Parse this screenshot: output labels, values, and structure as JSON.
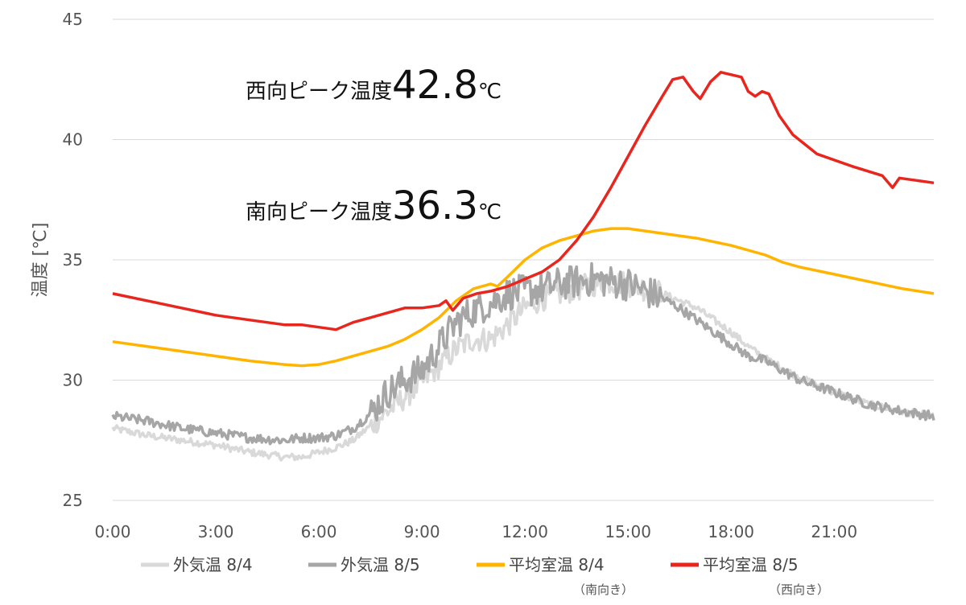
{
  "chart_data": {
    "type": "line",
    "ylabel": "温度 [℃]",
    "xlabel": "",
    "ylim": [
      25,
      45
    ],
    "yticks": [
      "25",
      "30",
      "35",
      "40",
      "45"
    ],
    "xlim": [
      0,
      23.9
    ],
    "xticks": [
      "0:00",
      "3:00",
      "6:00",
      "9:00",
      "12:00",
      "15:00",
      "18:00",
      "21:00"
    ],
    "grid": "horizontal",
    "legend_position": "bottom",
    "annotations": [
      {
        "label": "西向ピーク温度",
        "value": "42.8",
        "unit": "℃"
      },
      {
        "label": "南向ピーク温度",
        "value": "36.3",
        "unit": "℃"
      }
    ],
    "series": [
      {
        "name": "外気温 8/4",
        "color": "#d9d9d9",
        "noise": 0.15,
        "points": [
          [
            0,
            28.0
          ],
          [
            1,
            27.7
          ],
          [
            2,
            27.5
          ],
          [
            3,
            27.3
          ],
          [
            4,
            27.0
          ],
          [
            5,
            26.8
          ],
          [
            5.5,
            26.8
          ],
          [
            6,
            27.0
          ],
          [
            6.5,
            27.2
          ],
          [
            7,
            27.5
          ],
          [
            7.5,
            28.1
          ],
          [
            8,
            28.7
          ],
          [
            8.5,
            29.3
          ],
          [
            9,
            29.9
          ],
          [
            9.5,
            30.6
          ],
          [
            10,
            31.3
          ],
          [
            10.5,
            31.7
          ],
          [
            11,
            31.7
          ],
          [
            11.5,
            32.3
          ],
          [
            12,
            33.0
          ],
          [
            12.5,
            33.4
          ],
          [
            13,
            33.6
          ],
          [
            13.5,
            33.8
          ],
          [
            14,
            34.0
          ],
          [
            14.5,
            34.1
          ],
          [
            15,
            34.0
          ],
          [
            15.5,
            33.8
          ],
          [
            16,
            33.6
          ],
          [
            16.5,
            33.3
          ],
          [
            17,
            33.0
          ],
          [
            17.5,
            32.5
          ],
          [
            18,
            32.0
          ],
          [
            18.5,
            31.4
          ],
          [
            19,
            30.9
          ],
          [
            19.5,
            30.5
          ],
          [
            20,
            30.1
          ],
          [
            21,
            29.5
          ],
          [
            22,
            29.0
          ],
          [
            23,
            28.7
          ],
          [
            23.9,
            28.5
          ]
        ]
      },
      {
        "name": "外気温 8/5",
        "color": "#a6a6a6",
        "noise": 0.2,
        "points": [
          [
            0,
            28.5
          ],
          [
            1,
            28.3
          ],
          [
            2,
            28.0
          ],
          [
            3,
            27.8
          ],
          [
            4,
            27.6
          ],
          [
            5,
            27.5
          ],
          [
            5.5,
            27.6
          ],
          [
            6,
            27.6
          ],
          [
            6.5,
            27.7
          ],
          [
            7,
            28.0
          ],
          [
            7.5,
            28.6
          ],
          [
            8,
            29.5
          ],
          [
            8.5,
            30.0
          ],
          [
            9,
            30.4
          ],
          [
            9.5,
            31.4
          ],
          [
            10,
            32.4
          ],
          [
            10.5,
            32.9
          ],
          [
            11,
            33.2
          ],
          [
            11.5,
            33.6
          ],
          [
            12,
            33.7
          ],
          [
            12.5,
            33.8
          ],
          [
            13,
            34.0
          ],
          [
            13.5,
            34.1
          ],
          [
            14,
            34.2
          ],
          [
            14.5,
            34.1
          ],
          [
            15,
            34.0
          ],
          [
            15.5,
            33.7
          ],
          [
            16,
            33.4
          ],
          [
            16.5,
            33.0
          ],
          [
            17,
            32.5
          ],
          [
            17.5,
            32.0
          ],
          [
            18,
            31.5
          ],
          [
            18.5,
            31.0
          ],
          [
            19,
            30.8
          ],
          [
            19.5,
            30.4
          ],
          [
            20,
            30.0
          ],
          [
            21,
            29.5
          ],
          [
            22,
            29.0
          ],
          [
            23,
            28.7
          ],
          [
            23.9,
            28.5
          ]
        ]
      },
      {
        "name": "平均室温 8/4",
        "subname": "（南向き）",
        "color": "#ffb400",
        "noise": 0,
        "points": [
          [
            0,
            31.6
          ],
          [
            1,
            31.4
          ],
          [
            2,
            31.2
          ],
          [
            3,
            31.0
          ],
          [
            4,
            30.8
          ],
          [
            5,
            30.65
          ],
          [
            5.5,
            30.6
          ],
          [
            6,
            30.65
          ],
          [
            6.5,
            30.8
          ],
          [
            7,
            31.0
          ],
          [
            7.5,
            31.2
          ],
          [
            8,
            31.4
          ],
          [
            8.5,
            31.7
          ],
          [
            9,
            32.1
          ],
          [
            9.5,
            32.6
          ],
          [
            10,
            33.3
          ],
          [
            10.5,
            33.8
          ],
          [
            11,
            34.0
          ],
          [
            11.2,
            33.9
          ],
          [
            11.5,
            34.3
          ],
          [
            12,
            35.0
          ],
          [
            12.5,
            35.5
          ],
          [
            13,
            35.8
          ],
          [
            13.5,
            36.0
          ],
          [
            14,
            36.2
          ],
          [
            14.5,
            36.3
          ],
          [
            15,
            36.3
          ],
          [
            15.5,
            36.2
          ],
          [
            16,
            36.1
          ],
          [
            17,
            35.9
          ],
          [
            18,
            35.6
          ],
          [
            19,
            35.2
          ],
          [
            19.5,
            34.9
          ],
          [
            20,
            34.7
          ],
          [
            21,
            34.4
          ],
          [
            22,
            34.1
          ],
          [
            23,
            33.8
          ],
          [
            23.9,
            33.6
          ]
        ]
      },
      {
        "name": "平均室温 8/5",
        "subname": "（西向き）",
        "color": "#e8261e",
        "noise": 0,
        "points": [
          [
            0,
            33.6
          ],
          [
            1,
            33.3
          ],
          [
            2,
            33.0
          ],
          [
            3,
            32.7
          ],
          [
            4,
            32.5
          ],
          [
            5,
            32.3
          ],
          [
            5.5,
            32.3
          ],
          [
            6,
            32.2
          ],
          [
            6.5,
            32.1
          ],
          [
            7,
            32.4
          ],
          [
            7.5,
            32.6
          ],
          [
            8,
            32.8
          ],
          [
            8.5,
            33.0
          ],
          [
            9,
            33.0
          ],
          [
            9.5,
            33.1
          ],
          [
            9.7,
            33.3
          ],
          [
            9.9,
            32.9
          ],
          [
            10.2,
            33.4
          ],
          [
            10.6,
            33.6
          ],
          [
            11,
            33.7
          ],
          [
            11.5,
            33.9
          ],
          [
            12,
            34.2
          ],
          [
            12.5,
            34.5
          ],
          [
            13,
            35.0
          ],
          [
            13.5,
            35.8
          ],
          [
            14,
            36.8
          ],
          [
            14.5,
            38.0
          ],
          [
            15,
            39.3
          ],
          [
            15.5,
            40.6
          ],
          [
            16,
            41.8
          ],
          [
            16.3,
            42.5
          ],
          [
            16.6,
            42.6
          ],
          [
            16.9,
            42.0
          ],
          [
            17.1,
            41.7
          ],
          [
            17.4,
            42.4
          ],
          [
            17.7,
            42.8
          ],
          [
            18,
            42.7
          ],
          [
            18.3,
            42.6
          ],
          [
            18.5,
            42.0
          ],
          [
            18.7,
            41.8
          ],
          [
            18.9,
            42.0
          ],
          [
            19.1,
            41.9
          ],
          [
            19.4,
            41.0
          ],
          [
            19.8,
            40.2
          ],
          [
            20.5,
            39.4
          ],
          [
            21.5,
            38.9
          ],
          [
            22.4,
            38.5
          ],
          [
            22.7,
            38.0
          ],
          [
            22.9,
            38.4
          ],
          [
            23.4,
            38.3
          ],
          [
            23.9,
            38.2
          ]
        ]
      }
    ]
  }
}
